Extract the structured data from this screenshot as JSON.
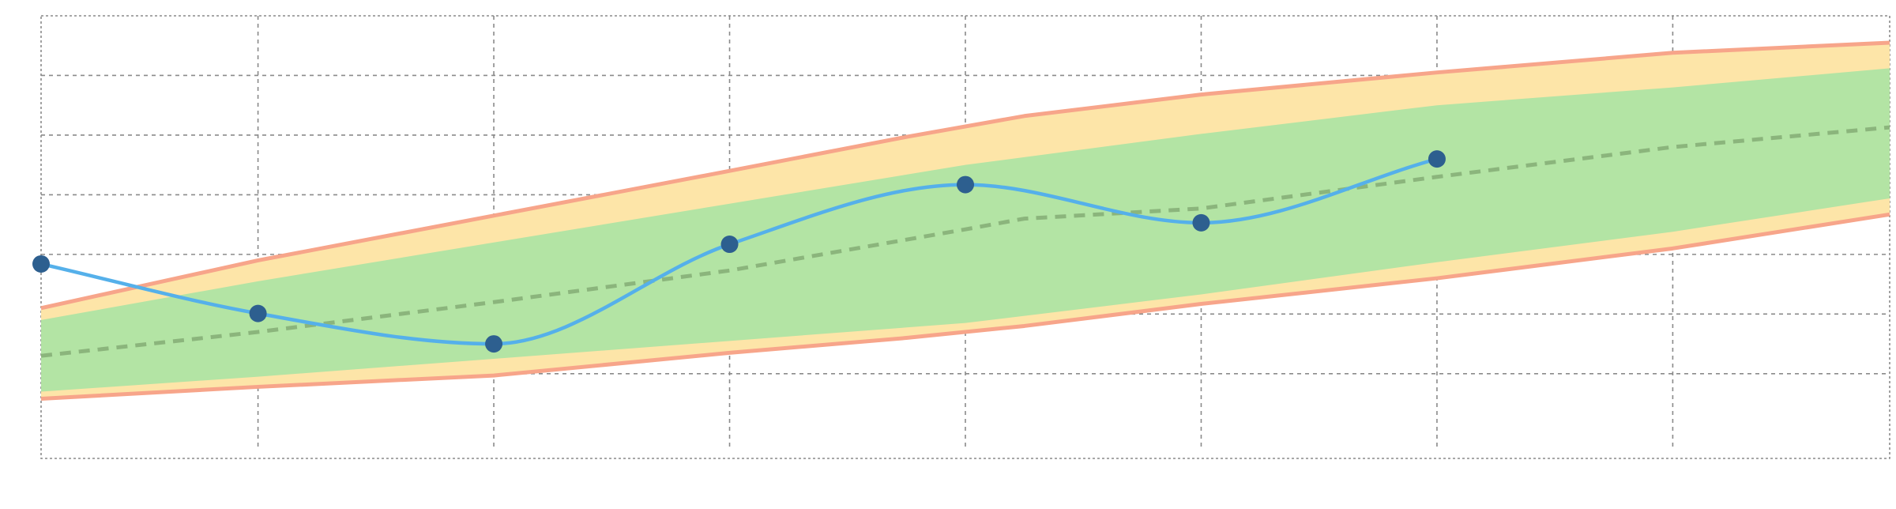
{
  "chart_data": {
    "type": "line",
    "title": "",
    "xlabel": "",
    "ylabel": "",
    "xlim": [
      -0.92,
      6.92
    ],
    "ylim": [
      -0.42,
      7.0
    ],
    "x_ticks": [
      "1",
      "2",
      "3",
      "4",
      "5",
      "6",
      "7"
    ],
    "y_ticks": [
      "1",
      "2",
      "3",
      "4",
      "5",
      "6"
    ],
    "grid": true,
    "colors": {
      "outer_band_fill": "#fde5a8",
      "outer_band_edge": "#f7a58a",
      "inner_band_fill": "#b3e4a4",
      "mean_line": "#8bb57c",
      "observed_line": "#55b0ea",
      "observed_points": "#2d5f8f",
      "grid": "#8a8a8a",
      "tick_text": "#7d7d7d"
    },
    "series": [
      {
        "role": "observed",
        "style": "smooth-line-with-markers",
        "x": [
          -0.92,
          0.0,
          1.0,
          2.0,
          3.0,
          4.0,
          5.0
        ],
        "y": [
          2.84,
          2.01,
          1.5,
          3.17,
          4.17,
          3.53,
          4.6
        ]
      },
      {
        "role": "mean",
        "style": "dashed-line",
        "x": [
          -0.92,
          0.0,
          1.0,
          2.0,
          3.0,
          3.25,
          4.0,
          5.0,
          6.0,
          6.92
        ],
        "y": [
          1.3,
          1.7,
          2.2,
          2.73,
          3.42,
          3.6,
          3.77,
          4.3,
          4.8,
          5.13
        ]
      },
      {
        "role": "inner-band",
        "x": [
          -0.92,
          0.0,
          1.0,
          2.0,
          3.0,
          4.0,
          5.0,
          6.0,
          6.92
        ],
        "lower": [
          0.7,
          0.95,
          1.25,
          1.55,
          1.85,
          2.33,
          2.87,
          3.38,
          3.94
        ],
        "upper": [
          1.9,
          2.55,
          3.2,
          3.85,
          4.5,
          5.02,
          5.5,
          5.8,
          6.12
        ]
      },
      {
        "role": "outer-band",
        "x": [
          -0.92,
          0.0,
          1.0,
          2.0,
          2.75,
          3.25,
          4.0,
          5.0,
          6.0,
          6.92
        ],
        "lower": [
          0.58,
          0.78,
          0.97,
          1.35,
          1.6,
          1.8,
          2.17,
          2.6,
          3.1,
          3.67
        ],
        "upper": [
          2.1,
          2.9,
          3.65,
          4.4,
          4.97,
          5.32,
          5.68,
          6.05,
          6.38,
          6.55
        ]
      }
    ]
  }
}
